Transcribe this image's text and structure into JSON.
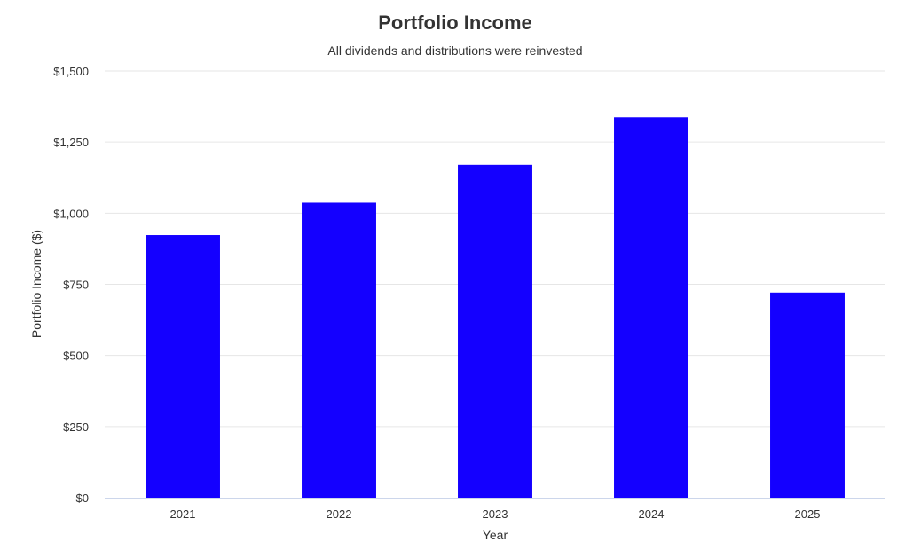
{
  "chart_data": {
    "type": "bar",
    "title": "Portfolio Income",
    "subtitle": "All dividends and distributions were reinvested",
    "xlabel": "Year",
    "ylabel": "Portfolio Income ($)",
    "categories": [
      "2021",
      "2022",
      "2023",
      "2024",
      "2025"
    ],
    "values": [
      923,
      1037,
      1170,
      1337,
      721
    ],
    "ylim": [
      0,
      1500
    ],
    "yticks": [
      0,
      250,
      500,
      750,
      1000,
      1250,
      1500
    ],
    "ytick_labels": [
      "$0",
      "$250",
      "$500",
      "$750",
      "$1,000",
      "$1,250",
      "$1,500"
    ],
    "grid": true,
    "legend": "none",
    "colors": {
      "bar": "#1400ff",
      "grid": "#e6e6e6",
      "axis": "#ccd6eb",
      "text": "#333333"
    }
  }
}
